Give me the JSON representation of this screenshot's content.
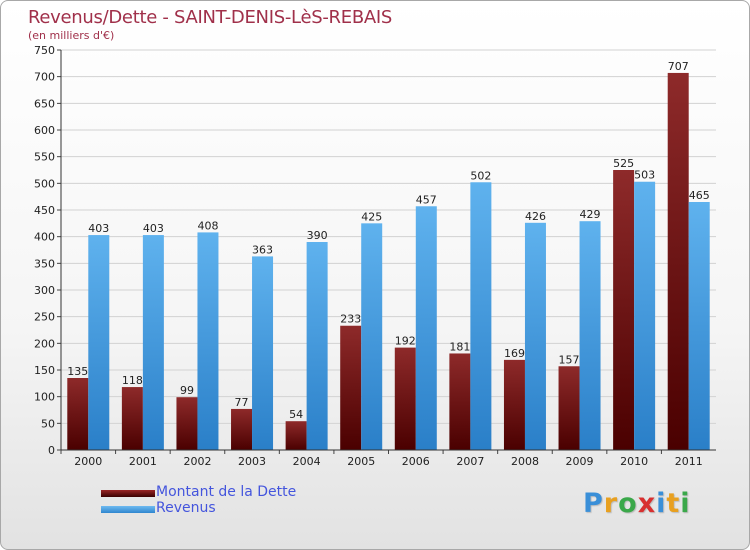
{
  "chart_data": {
    "type": "bar",
    "title": "Revenus/Dette - SAINT-DENIS-LèS-REBAIS",
    "subtitle": "(en milliers d'€)",
    "categories": [
      "2000",
      "2001",
      "2002",
      "2003",
      "2004",
      "2005",
      "2006",
      "2007",
      "2008",
      "2009",
      "2010",
      "2011"
    ],
    "series": [
      {
        "name": "Montant de la Dette",
        "color": "#7a1515",
        "values": [
          135,
          118,
          99,
          77,
          54,
          233,
          192,
          181,
          169,
          157,
          525,
          707
        ]
      },
      {
        "name": "Revenus",
        "color": "#4fa3e3",
        "values": [
          403,
          403,
          408,
          363,
          390,
          425,
          457,
          502,
          426,
          429,
          503,
          465
        ]
      }
    ],
    "ylim": [
      0,
      750
    ],
    "yticks": [
      0,
      50,
      100,
      150,
      200,
      250,
      300,
      350,
      400,
      450,
      500,
      550,
      600,
      650,
      700,
      750
    ],
    "grid": true,
    "legend": "bottom-left"
  },
  "logo": {
    "text": "Proxiti"
  }
}
